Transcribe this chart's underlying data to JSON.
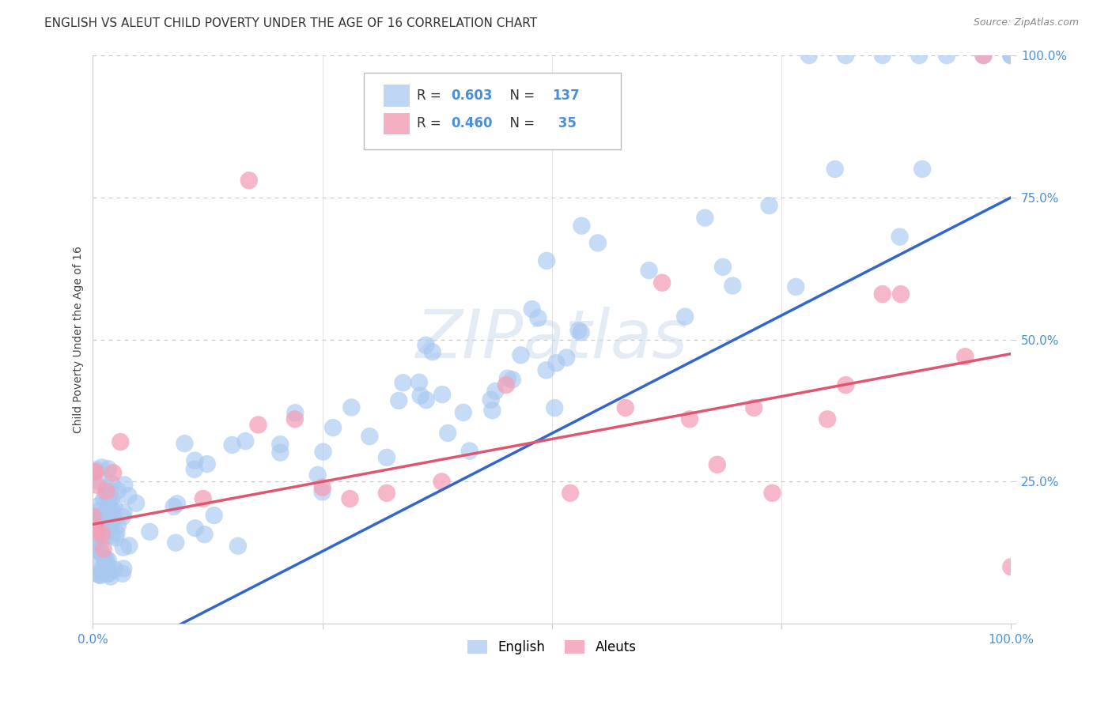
{
  "title": "ENGLISH VS ALEUT CHILD POVERTY UNDER THE AGE OF 16 CORRELATION CHART",
  "source": "Source: ZipAtlas.com",
  "ylabel": "Child Poverty Under the Age of 16",
  "xlim": [
    0,
    1
  ],
  "ylim": [
    0,
    1
  ],
  "english_R": 0.603,
  "english_N": 137,
  "aleut_R": 0.46,
  "aleut_N": 35,
  "english_color": "#a8c8f0",
  "aleut_color": "#f4a0b8",
  "english_line_color": "#3366cc",
  "aleut_line_color": "#e05570",
  "english_line": [
    -0.08,
    0.83
  ],
  "aleut_line": [
    0.175,
    0.3
  ],
  "watermark_text": "ZIPatlas",
  "background_color": "#ffffff",
  "grid_color": "#cccccc",
  "title_fontsize": 11,
  "tick_color": "#4a90d9",
  "source_color": "#888888"
}
